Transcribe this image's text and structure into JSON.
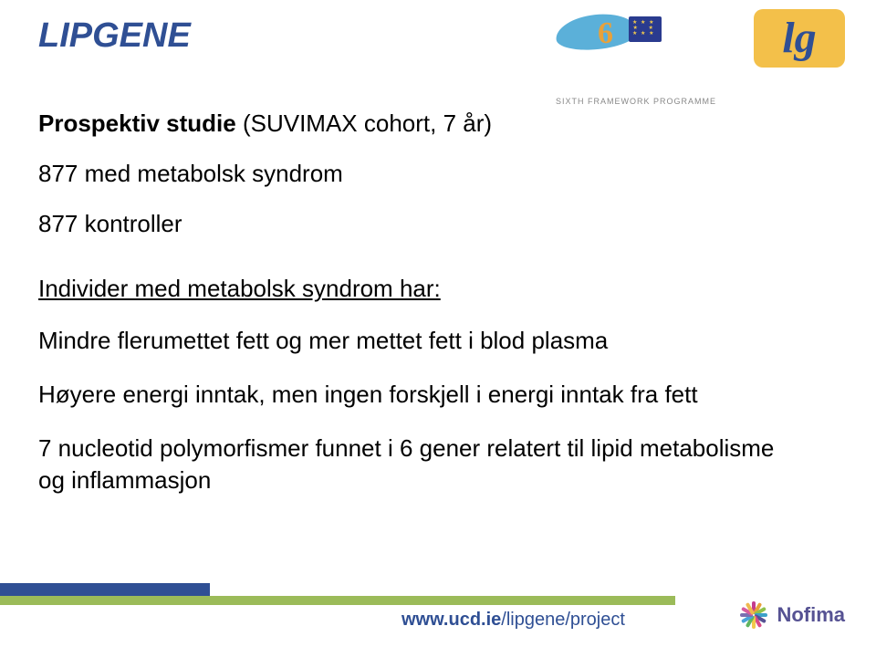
{
  "title": "LIPGENE",
  "line1_bold": "Prospektiv studie",
  "line1_rest": " (SUVIMAX cohort, 7 år)",
  "line2": "877 med metabolsk syndrom",
  "line3": "877 kontroller",
  "subhead": "Individer med metabolsk syndrom har:",
  "body1": "Mindre flerumettet fett og mer mettet fett i blod plasma",
  "body2": "Høyere energi inntak, men ingen forskjell i energi inntak fra fett",
  "body3": "7 nucleotid polymorfismer funnet i 6 gener relatert  til lipid metabolisme og inflammasjon",
  "fp6_label": "SIXTH FRAMEWORK PROGRAMME",
  "lg_label": "lg",
  "footer_url_prefix": "www.ucd.ie",
  "footer_url_suffix": "/lipgene/project",
  "nofima_label": "Nofima",
  "colors": {
    "title": "#2f4f94",
    "accent_blue": "#2f4f94",
    "accent_green": "#9bbb59",
    "lg_bg": "#f3c04a",
    "nofima_purple": "#565293"
  },
  "nofima_burst_colors": [
    "#c43c8e",
    "#e8a13a",
    "#8fc24a",
    "#3da1c9",
    "#565293",
    "#d94b87",
    "#f2c94c",
    "#60b560",
    "#4aa3d8",
    "#7a6fb0",
    "#d65c9e",
    "#efb94f"
  ]
}
